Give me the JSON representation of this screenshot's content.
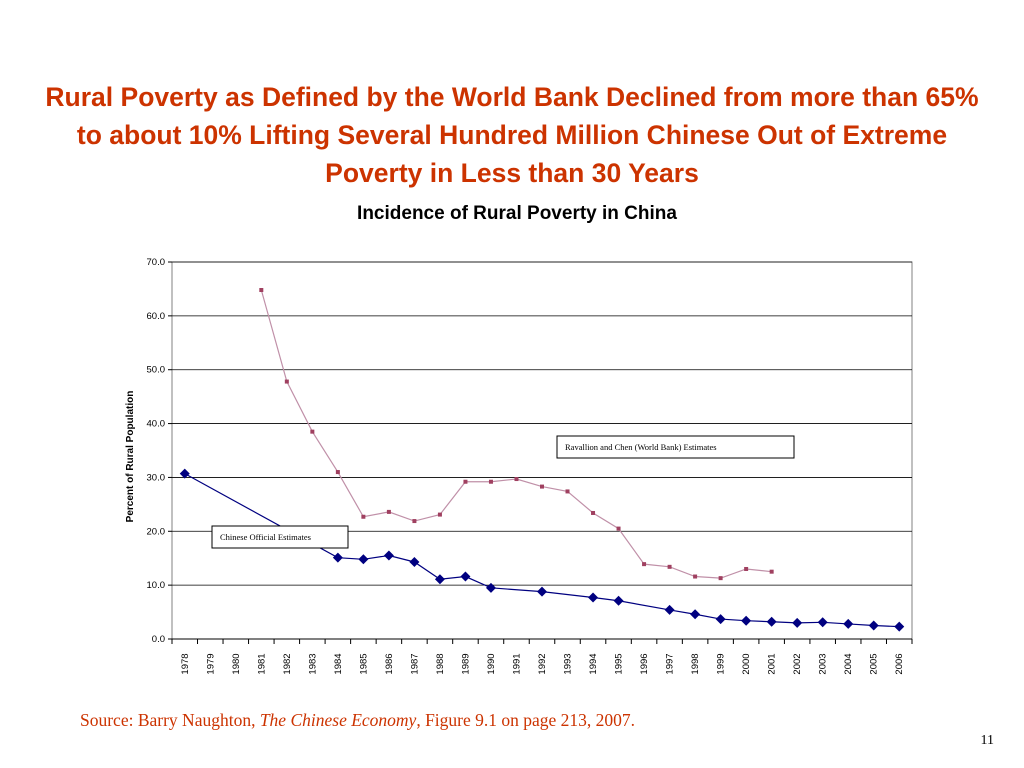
{
  "slide": {
    "title": "Rural Poverty as Defined by the World Bank Declined from more than 65% to about 10% Lifting Several Hundred Million Chinese Out of Extreme Poverty in Less than 30 Years",
    "source_prefix": "Source: Barry Naughton, ",
    "source_title": "The Chinese Economy",
    "source_suffix": ", Figure 9.1 on page 213, 2007.",
    "page_number": "11"
  },
  "chart_data": {
    "type": "line",
    "title": "Incidence of Rural Poverty in China",
    "xlabel": "",
    "ylabel": "Percent of Rural Population",
    "ylim": [
      0,
      70
    ],
    "yticks": [
      "0.0",
      "10.0",
      "20.0",
      "30.0",
      "40.0",
      "50.0",
      "60.0",
      "70.0"
    ],
    "categories": [
      "1978",
      "1979",
      "1980",
      "1981",
      "1982",
      "1983",
      "1984",
      "1985",
      "1986",
      "1987",
      "1988",
      "1989",
      "1990",
      "1991",
      "1992",
      "1993",
      "1994",
      "1995",
      "1996",
      "1997",
      "1998",
      "1999",
      "2000",
      "2001",
      "2002",
      "2003",
      "2004",
      "2005",
      "2006"
    ],
    "grid": true,
    "series": [
      {
        "name": "Ravallion and Chen (World Bank) Estimates",
        "color": "#a04060",
        "marker": "square",
        "values": [
          null,
          null,
          null,
          64.8,
          47.8,
          38.5,
          31.0,
          22.7,
          23.6,
          21.9,
          23.1,
          29.2,
          29.2,
          29.7,
          28.3,
          27.4,
          23.4,
          20.5,
          13.9,
          13.4,
          11.6,
          11.3,
          13.0,
          12.5,
          null,
          null,
          null,
          null,
          null
        ]
      },
      {
        "name": "Chinese Official Estimates",
        "color": "#000080",
        "marker": "diamond",
        "values": [
          30.7,
          null,
          null,
          null,
          null,
          null,
          15.1,
          14.8,
          15.5,
          14.3,
          11.1,
          11.6,
          9.5,
          null,
          8.8,
          null,
          7.7,
          7.1,
          null,
          5.4,
          4.6,
          3.7,
          3.4,
          3.2,
          3.0,
          3.1,
          2.8,
          2.5,
          2.3
        ]
      }
    ]
  }
}
